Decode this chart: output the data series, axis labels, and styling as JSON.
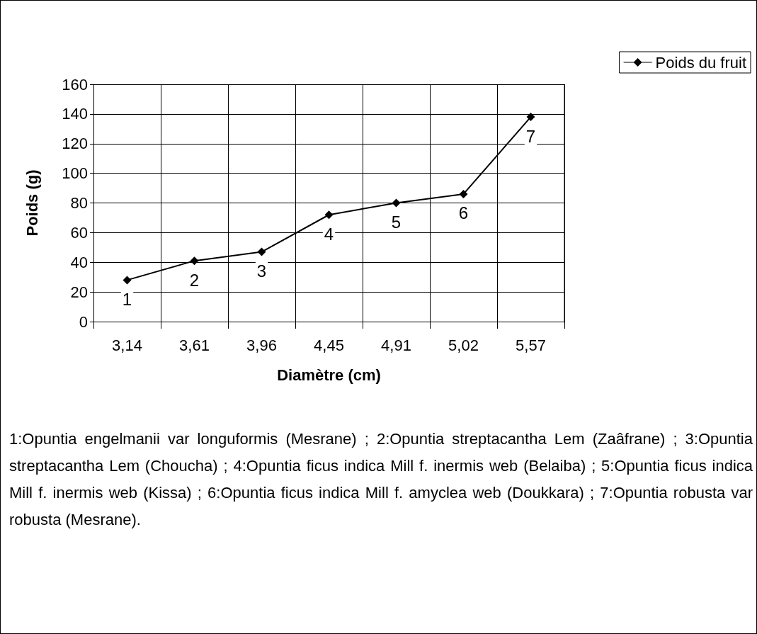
{
  "chart_data": {
    "type": "line",
    "xlabel": "Diamètre (cm)",
    "ylabel": "Poids (g)",
    "categories": [
      "3,14",
      "3,61",
      "3,96",
      "4,45",
      "4,91",
      "5,02",
      "5,57"
    ],
    "series": [
      {
        "name": "Poids du fruit",
        "color": "#000000",
        "values": [
          28,
          41,
          47,
          72,
          80,
          86,
          138
        ]
      }
    ],
    "ylim": [
      0,
      160
    ],
    "yticks": [
      0,
      20,
      40,
      60,
      80,
      100,
      120,
      140,
      160
    ],
    "grid": true,
    "legend": "top right",
    "marker": "diamond",
    "line_style": "solid",
    "annotations": [
      {
        "text": "1",
        "x": "3,14",
        "y": 28
      },
      {
        "text": "2",
        "x": "3,61",
        "y": 41
      },
      {
        "text": "3",
        "x": "3,96",
        "y": 47
      },
      {
        "text": "4",
        "x": "4,45",
        "y": 72
      },
      {
        "text": "5",
        "x": "4,91",
        "y": 80
      },
      {
        "text": "6",
        "x": "5,02",
        "y": 86
      },
      {
        "text": "7",
        "x": "5,57",
        "y": 138
      },
      "1:Opuntia engelmanii var longuformis (Mesrane) ; 2:Opuntia streptacantha Lem (Zaâfrane) ; 3:Opuntia streptacantha Lem (Choucha) ; 4:Opuntia ficus indica Mill f. inermis web (Belaiba) ; 5:Opuntia ficus indica Mill f. inermis web (Kissa) ; 6:Opuntia ficus indica Mill f. amyclea web (Doukkara) ; 7:Opuntia robusta var robusta (Mesrane)."
    ]
  }
}
